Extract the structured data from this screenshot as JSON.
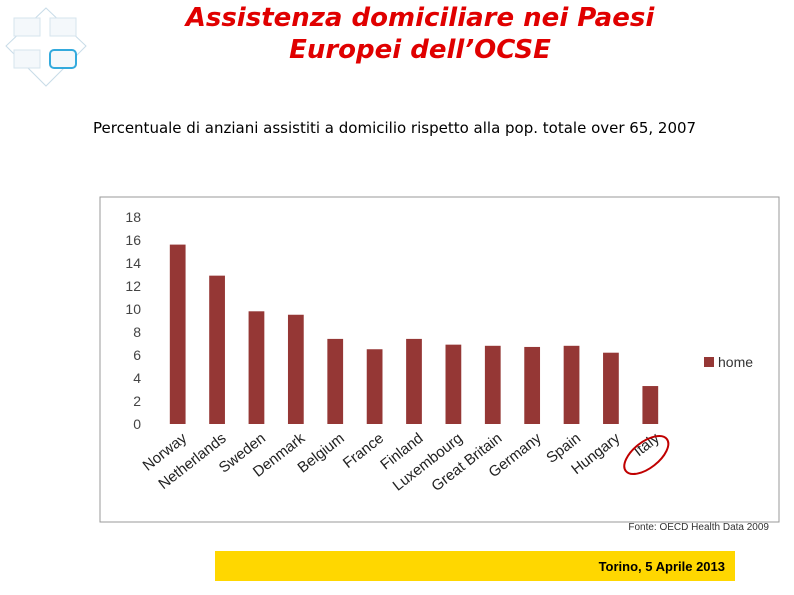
{
  "title": "Assistenza domiciliare nei Paesi Europei dell’OCSE",
  "chart_data": {
    "type": "bar",
    "subtitle": "Percentuale di anziani assistiti a domicilio rispetto alla pop. totale over 65, 2007",
    "categories": [
      "Norway",
      "Netherlands",
      "Sweden",
      "Denmark",
      "Belgium",
      "France",
      "Finland",
      "Luxembourg",
      "Great Britain",
      "Germany",
      "Spain",
      "Hungary",
      "Italy"
    ],
    "series": [
      {
        "name": "home",
        "color": "#953735",
        "values": [
          15.6,
          12.9,
          9.8,
          9.5,
          7.4,
          6.5,
          7.4,
          6.9,
          6.8,
          6.7,
          6.8,
          6.2,
          3.3
        ]
      }
    ],
    "ylim": [
      0,
      18
    ],
    "yticks": [
      0,
      2,
      4,
      6,
      8,
      10,
      12,
      14,
      16,
      18
    ],
    "grid": false,
    "legend": "right",
    "source": "Fonte: OECD Health Data 2009"
  },
  "footer": "Torino, 5 Aprile 2013"
}
